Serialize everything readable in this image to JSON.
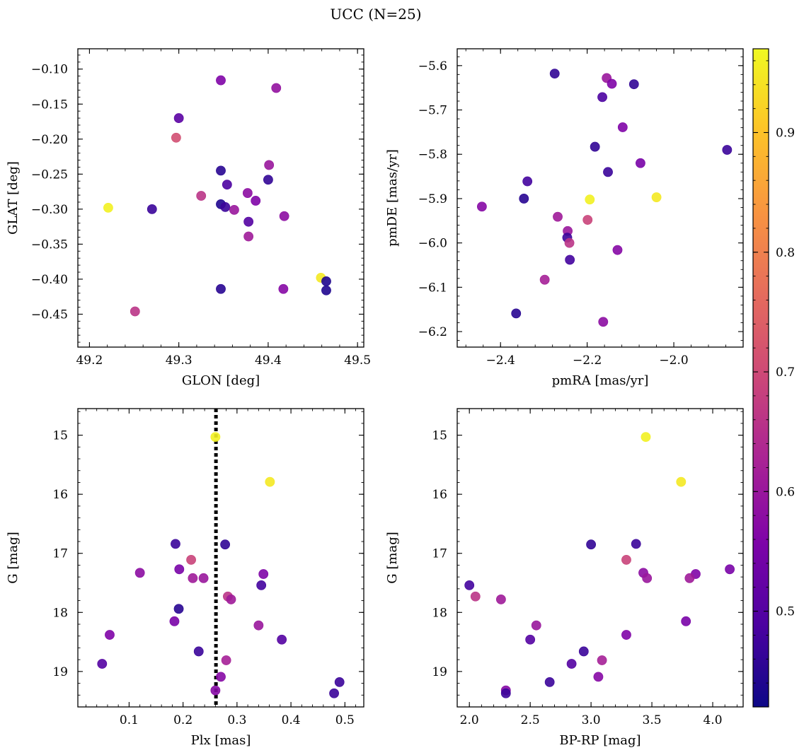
{
  "suptitle": "UCC (N=25)",
  "colorbar": {
    "range": [
      0.42,
      0.97
    ],
    "ticks": [
      0.5,
      0.6,
      0.7,
      0.8,
      0.9
    ],
    "tick_labels": [
      "0.5",
      "0.6",
      "0.7",
      "0.8",
      "0.9"
    ]
  },
  "chart_data": [
    {
      "type": "scatter",
      "xlabel": "GLON [deg]",
      "ylabel": "GLAT [deg]",
      "xlim": [
        49.187,
        49.507
      ],
      "ylim": [
        -0.497,
        -0.071
      ],
      "y_inverted": false,
      "xticks": [
        49.2,
        49.3,
        49.4,
        49.5
      ],
      "xtick_labels": [
        "49.2",
        "49.3",
        "49.4",
        "49.5"
      ],
      "yticks": [
        -0.45,
        -0.4,
        -0.35,
        -0.3,
        -0.25,
        -0.2,
        -0.15,
        -0.1
      ],
      "ytick_labels": [
        "−0.45",
        "−0.40",
        "−0.35",
        "−0.30",
        "−0.25",
        "−0.20",
        "−0.15",
        "−0.10"
      ],
      "points": [
        {
          "x": 49.347,
          "y": -0.116,
          "c": 0.56
        },
        {
          "x": 49.409,
          "y": -0.127,
          "c": 0.59
        },
        {
          "x": 49.3,
          "y": -0.17,
          "c": 0.51
        },
        {
          "x": 49.297,
          "y": -0.198,
          "c": 0.71
        },
        {
          "x": 49.401,
          "y": -0.237,
          "c": 0.6
        },
        {
          "x": 49.347,
          "y": -0.245,
          "c": 0.45
        },
        {
          "x": 49.4,
          "y": -0.258,
          "c": 0.46
        },
        {
          "x": 49.354,
          "y": -0.265,
          "c": 0.49
        },
        {
          "x": 49.377,
          "y": -0.277,
          "c": 0.58
        },
        {
          "x": 49.325,
          "y": -0.281,
          "c": 0.66
        },
        {
          "x": 49.386,
          "y": -0.288,
          "c": 0.56
        },
        {
          "x": 49.347,
          "y": -0.293,
          "c": 0.44
        },
        {
          "x": 49.352,
          "y": -0.297,
          "c": 0.47
        },
        {
          "x": 49.221,
          "y": -0.298,
          "c": 0.96
        },
        {
          "x": 49.27,
          "y": -0.3,
          "c": 0.47
        },
        {
          "x": 49.362,
          "y": -0.301,
          "c": 0.6
        },
        {
          "x": 49.418,
          "y": -0.31,
          "c": 0.58
        },
        {
          "x": 49.378,
          "y": -0.318,
          "c": 0.5
        },
        {
          "x": 49.378,
          "y": -0.339,
          "c": 0.61
        },
        {
          "x": 49.459,
          "y": -0.398,
          "c": 0.95
        },
        {
          "x": 49.465,
          "y": -0.403,
          "c": 0.44
        },
        {
          "x": 49.347,
          "y": -0.414,
          "c": 0.45
        },
        {
          "x": 49.417,
          "y": -0.414,
          "c": 0.57
        },
        {
          "x": 49.465,
          "y": -0.416,
          "c": 0.44
        },
        {
          "x": 49.251,
          "y": -0.446,
          "c": 0.66
        }
      ]
    },
    {
      "type": "scatter",
      "xlabel": "pmRA [mas/yr]",
      "ylabel": "pmDE [mas/yr]",
      "xlim": [
        -2.5,
        -1.84
      ],
      "ylim": [
        -6.235,
        -5.562
      ],
      "y_inverted": false,
      "xticks": [
        -2.4,
        -2.2,
        -2.0
      ],
      "xtick_labels": [
        "−2.4",
        "−2.2",
        "−2.0"
      ],
      "yticks": [
        -6.2,
        -6.1,
        -6.0,
        -5.9,
        -5.8,
        -5.7,
        -5.6
      ],
      "ytick_labels": [
        "−6.2",
        "−6.1",
        "−6.0",
        "−5.9",
        "−5.8",
        "−5.7",
        "−5.6"
      ],
      "points": [
        {
          "x": -2.275,
          "y": -5.618,
          "c": 0.46
        },
        {
          "x": -2.155,
          "y": -5.628,
          "c": 0.6
        },
        {
          "x": -2.143,
          "y": -5.641,
          "c": 0.56
        },
        {
          "x": -2.092,
          "y": -5.642,
          "c": 0.46
        },
        {
          "x": -2.165,
          "y": -5.671,
          "c": 0.49
        },
        {
          "x": -2.118,
          "y": -5.739,
          "c": 0.56
        },
        {
          "x": -2.182,
          "y": -5.783,
          "c": 0.46
        },
        {
          "x": -1.877,
          "y": -5.79,
          "c": 0.47
        },
        {
          "x": -2.077,
          "y": -5.82,
          "c": 0.55
        },
        {
          "x": -2.152,
          "y": -5.84,
          "c": 0.47
        },
        {
          "x": -2.338,
          "y": -5.861,
          "c": 0.48
        },
        {
          "x": -2.04,
          "y": -5.897,
          "c": 0.95
        },
        {
          "x": -2.194,
          "y": -5.902,
          "c": 0.96
        },
        {
          "x": -2.346,
          "y": -5.9,
          "c": 0.45
        },
        {
          "x": -2.443,
          "y": -5.918,
          "c": 0.57
        },
        {
          "x": -2.268,
          "y": -5.941,
          "c": 0.61
        },
        {
          "x": -2.199,
          "y": -5.948,
          "c": 0.69
        },
        {
          "x": -2.245,
          "y": -5.973,
          "c": 0.6
        },
        {
          "x": -2.246,
          "y": -5.988,
          "c": 0.47
        },
        {
          "x": -2.241,
          "y": -6.0,
          "c": 0.66
        },
        {
          "x": -2.13,
          "y": -6.016,
          "c": 0.57
        },
        {
          "x": -2.24,
          "y": -6.038,
          "c": 0.48
        },
        {
          "x": -2.298,
          "y": -6.083,
          "c": 0.62
        },
        {
          "x": -2.364,
          "y": -6.159,
          "c": 0.45
        },
        {
          "x": -2.163,
          "y": -6.178,
          "c": 0.58
        }
      ]
    },
    {
      "type": "scatter",
      "xlabel": "Plx [mas]",
      "ylabel": "G [mag]",
      "xlim": [
        0.005,
        0.535
      ],
      "ylim": [
        19.6,
        14.55
      ],
      "y_inverted": true,
      "xticks": [
        0.1,
        0.2,
        0.3,
        0.4,
        0.5
      ],
      "xtick_labels": [
        "0.1",
        "0.2",
        "0.3",
        "0.4",
        "0.5"
      ],
      "yticks": [
        15,
        16,
        17,
        18,
        19
      ],
      "ytick_labels": [
        "15",
        "16",
        "17",
        "18",
        "19"
      ],
      "vline": {
        "x": 0.261,
        "style": "dotted",
        "color": "#000000"
      },
      "points": [
        {
          "x": 0.26,
          "y": 15.03,
          "c": 0.96
        },
        {
          "x": 0.361,
          "y": 15.79,
          "c": 0.95
        },
        {
          "x": 0.186,
          "y": 16.84,
          "c": 0.47
        },
        {
          "x": 0.278,
          "y": 16.85,
          "c": 0.46
        },
        {
          "x": 0.215,
          "y": 17.11,
          "c": 0.69
        },
        {
          "x": 0.12,
          "y": 17.33,
          "c": 0.58
        },
        {
          "x": 0.193,
          "y": 17.27,
          "c": 0.55
        },
        {
          "x": 0.349,
          "y": 17.35,
          "c": 0.56
        },
        {
          "x": 0.218,
          "y": 17.42,
          "c": 0.61
        },
        {
          "x": 0.238,
          "y": 17.42,
          "c": 0.6
        },
        {
          "x": 0.345,
          "y": 17.54,
          "c": 0.48
        },
        {
          "x": 0.283,
          "y": 17.73,
          "c": 0.66
        },
        {
          "x": 0.289,
          "y": 17.78,
          "c": 0.61
        },
        {
          "x": 0.192,
          "y": 17.94,
          "c": 0.45
        },
        {
          "x": 0.184,
          "y": 18.15,
          "c": 0.55
        },
        {
          "x": 0.34,
          "y": 18.22,
          "c": 0.6
        },
        {
          "x": 0.064,
          "y": 18.38,
          "c": 0.56
        },
        {
          "x": 0.383,
          "y": 18.46,
          "c": 0.5
        },
        {
          "x": 0.229,
          "y": 18.66,
          "c": 0.47
        },
        {
          "x": 0.28,
          "y": 18.81,
          "c": 0.62
        },
        {
          "x": 0.05,
          "y": 18.87,
          "c": 0.5
        },
        {
          "x": 0.27,
          "y": 19.09,
          "c": 0.57
        },
        {
          "x": 0.49,
          "y": 19.18,
          "c": 0.47
        },
        {
          "x": 0.26,
          "y": 19.32,
          "c": 0.57
        },
        {
          "x": 0.48,
          "y": 19.37,
          "c": 0.47
        }
      ]
    },
    {
      "type": "scatter",
      "xlabel": "BP-RP [mag]",
      "ylabel": "G [mag]",
      "xlim": [
        1.9,
        4.25
      ],
      "ylim": [
        19.6,
        14.55
      ],
      "y_inverted": true,
      "xticks": [
        2.0,
        2.5,
        3.0,
        3.5,
        4.0
      ],
      "xtick_labels": [
        "2.0",
        "2.5",
        "3.0",
        "3.5",
        "4.0"
      ],
      "yticks": [
        15,
        16,
        17,
        18,
        19
      ],
      "ytick_labels": [
        "15",
        "16",
        "17",
        "18",
        "19"
      ],
      "points": [
        {
          "x": 3.45,
          "y": 15.03,
          "c": 0.96
        },
        {
          "x": 3.74,
          "y": 15.79,
          "c": 0.95
        },
        {
          "x": 3.37,
          "y": 16.84,
          "c": 0.47
        },
        {
          "x": 3.0,
          "y": 16.85,
          "c": 0.46
        },
        {
          "x": 3.29,
          "y": 17.11,
          "c": 0.69
        },
        {
          "x": 4.14,
          "y": 17.27,
          "c": 0.55
        },
        {
          "x": 3.43,
          "y": 17.33,
          "c": 0.58
        },
        {
          "x": 3.86,
          "y": 17.35,
          "c": 0.56
        },
        {
          "x": 3.46,
          "y": 17.42,
          "c": 0.6
        },
        {
          "x": 3.81,
          "y": 17.42,
          "c": 0.61
        },
        {
          "x": 2.0,
          "y": 17.54,
          "c": 0.48
        },
        {
          "x": 2.05,
          "y": 17.73,
          "c": 0.66
        },
        {
          "x": 2.26,
          "y": 17.78,
          "c": 0.61
        },
        {
          "x": 3.78,
          "y": 18.15,
          "c": 0.55
        },
        {
          "x": 2.55,
          "y": 18.22,
          "c": 0.6
        },
        {
          "x": 3.29,
          "y": 18.38,
          "c": 0.56
        },
        {
          "x": 2.5,
          "y": 18.46,
          "c": 0.5
        },
        {
          "x": 2.94,
          "y": 18.66,
          "c": 0.47
        },
        {
          "x": 3.09,
          "y": 18.81,
          "c": 0.62
        },
        {
          "x": 2.84,
          "y": 18.87,
          "c": 0.5
        },
        {
          "x": 3.06,
          "y": 19.09,
          "c": 0.57
        },
        {
          "x": 2.66,
          "y": 19.18,
          "c": 0.47
        },
        {
          "x": 2.3,
          "y": 19.32,
          "c": 0.57
        },
        {
          "x": 2.3,
          "y": 19.37,
          "c": 0.47
        }
      ]
    }
  ]
}
